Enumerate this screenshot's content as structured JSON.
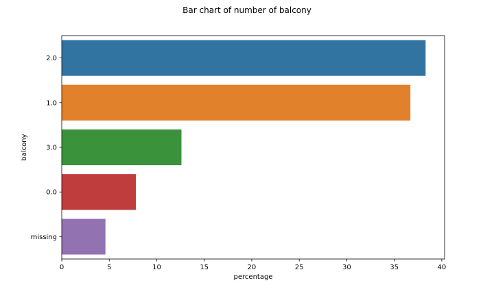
{
  "chart_data": {
    "type": "bar",
    "orientation": "horizontal",
    "title": "Bar chart of number of balcony",
    "xlabel": "percentage",
    "ylabel": "balcony",
    "categories": [
      "2.0",
      "1.0",
      "3.0",
      "0.0",
      "missing"
    ],
    "values": [
      38.3,
      36.7,
      12.6,
      7.8,
      4.6
    ],
    "colors": [
      "#3274a1",
      "#e1812c",
      "#3a923a",
      "#c03d3e",
      "#9372b2"
    ],
    "xlim": [
      0,
      40.3
    ],
    "xticks": [
      0,
      5,
      10,
      15,
      20,
      25,
      30,
      35,
      40
    ],
    "grid": false
  }
}
